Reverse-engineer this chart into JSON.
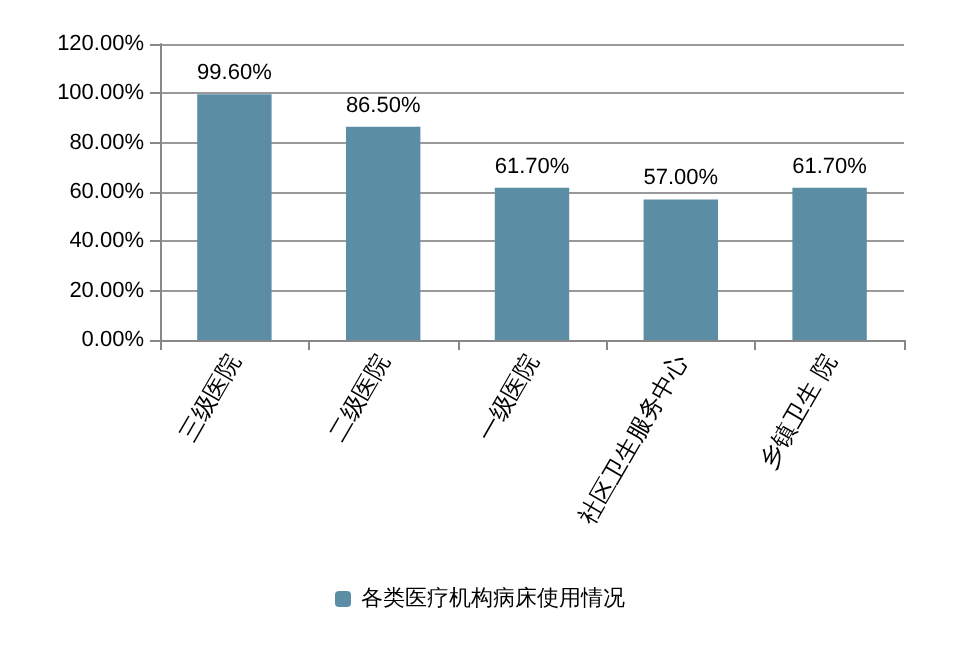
{
  "chart_data": {
    "type": "bar",
    "categories": [
      "三级医院",
      "二级医院",
      "一级医院",
      "社区卫生服务中心",
      "乡镇卫生 院"
    ],
    "series": [
      {
        "name": "各类医疗机构病床使用情况",
        "color": "#5b8ea4",
        "values": [
          99.6,
          86.5,
          61.7,
          57.0,
          61.7
        ],
        "value_labels": [
          "99.60%",
          "86.50%",
          "61.70%",
          "57.00%",
          "61.70%"
        ]
      }
    ],
    "ylim": [
      0,
      120
    ],
    "yticks": [
      {
        "value": 0,
        "label": "0.00%"
      },
      {
        "value": 20,
        "label": "20.00%"
      },
      {
        "value": 40,
        "label": "40.00%"
      },
      {
        "value": 60,
        "label": "60.00%"
      },
      {
        "value": 80,
        "label": "80.00%"
      },
      {
        "value": 100,
        "label": "100.00%"
      },
      {
        "value": 120,
        "label": "120.00%"
      }
    ],
    "grid": "y",
    "legend": "bottom"
  }
}
